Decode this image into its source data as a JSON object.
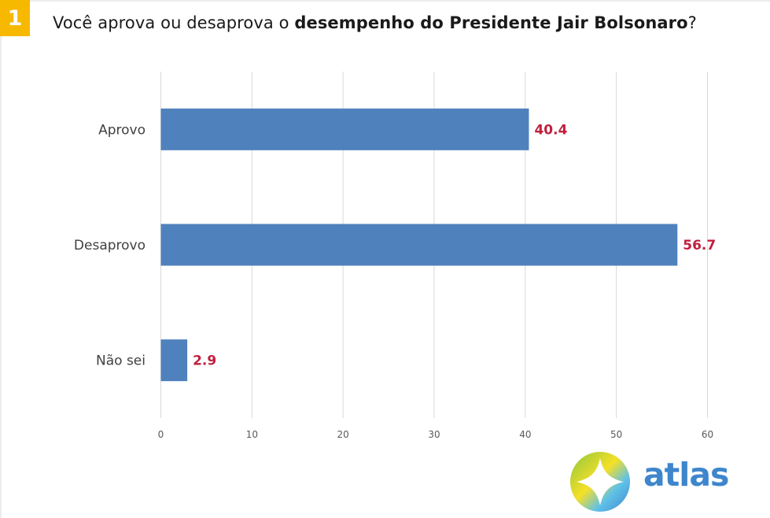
{
  "badge": "1",
  "title": {
    "prefix": "Você aprova ou desaprova o ",
    "bold": "desempenho do Presidente Jair Bolsonaro",
    "suffix": "?"
  },
  "colors": {
    "bar": "#4f81bd",
    "value_label": "#c0203e",
    "badge": "#f7b800",
    "grid": "#d9d9d9"
  },
  "chart_data": {
    "type": "bar",
    "orientation": "horizontal",
    "categories": [
      "Aprovo",
      "Desaprovo",
      "Não sei"
    ],
    "values": [
      40.4,
      56.7,
      2.9
    ],
    "value_labels": [
      "40.4",
      "56.7",
      "2.9"
    ],
    "xlim": [
      0,
      60
    ],
    "xticks": [
      0,
      10,
      20,
      30,
      40,
      50,
      60
    ],
    "grid": true,
    "legend": "none"
  },
  "logo": {
    "icon": "atlas-compass-logo-icon",
    "text": "atlas"
  }
}
